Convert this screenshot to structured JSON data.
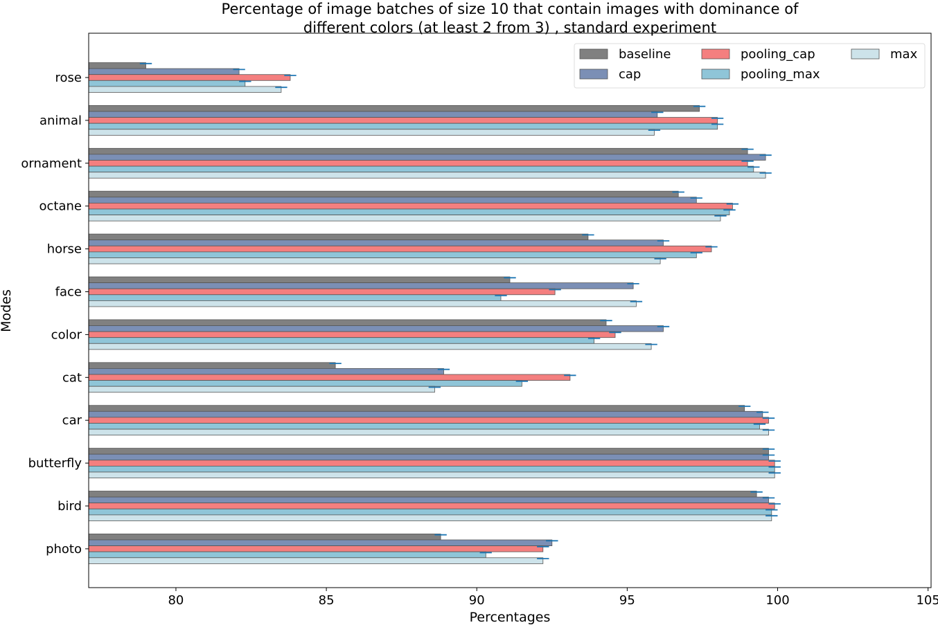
{
  "chart_data": {
    "type": "bar",
    "orientation": "horizontal",
    "title_line1": "Percentage of image batches of size  10  that contain images with dominance of",
    "title_line2": "different colors (at least 2 from 3) , standard experiment",
    "xlabel": "Percentages",
    "ylabel": "Modes",
    "xlim": [
      77.1,
      105.1
    ],
    "xticks": [
      80,
      85,
      90,
      95,
      100,
      105
    ],
    "legend_position": "upper right",
    "legend_columns": 3,
    "grid": false,
    "categories": [
      "rose",
      "animal",
      "ornament",
      "octane",
      "horse",
      "face",
      "color",
      "cat",
      "car",
      "butterfly",
      "bird",
      "photo"
    ],
    "series": [
      {
        "name": "baseline",
        "color": "#808080",
        "values": [
          79.0,
          97.4,
          99.0,
          96.7,
          93.7,
          91.1,
          94.3,
          85.3,
          98.9,
          99.7,
          99.3,
          88.8
        ],
        "errors": [
          0.2,
          0.2,
          0.2,
          0.2,
          0.2,
          0.2,
          0.2,
          0.2,
          0.2,
          0.2,
          0.2,
          0.2
        ]
      },
      {
        "name": "cap",
        "color": "#7b8fb5",
        "values": [
          82.1,
          96.0,
          99.6,
          97.3,
          96.2,
          95.2,
          96.2,
          88.9,
          99.5,
          99.7,
          99.7,
          92.5
        ],
        "errors": [
          0.2,
          0.2,
          0.2,
          0.2,
          0.2,
          0.2,
          0.2,
          0.2,
          0.2,
          0.2,
          0.2,
          0.2
        ]
      },
      {
        "name": "pooling_cap",
        "color": "#f47f7f",
        "values": [
          83.8,
          98.0,
          99.0,
          98.5,
          97.8,
          92.6,
          94.6,
          93.1,
          99.7,
          99.9,
          99.9,
          92.2
        ],
        "errors": [
          0.2,
          0.2,
          0.2,
          0.2,
          0.2,
          0.2,
          0.2,
          0.2,
          0.2,
          0.2,
          0.2,
          0.2
        ]
      },
      {
        "name": "pooling_max",
        "color": "#8fc5d8",
        "values": [
          82.3,
          98.0,
          99.2,
          98.4,
          97.3,
          90.8,
          93.9,
          91.5,
          99.4,
          99.9,
          99.8,
          90.3
        ],
        "errors": [
          0.2,
          0.2,
          0.2,
          0.2,
          0.2,
          0.2,
          0.2,
          0.2,
          0.2,
          0.2,
          0.2,
          0.2
        ]
      },
      {
        "name": "max",
        "color": "#cde3ea",
        "values": [
          83.5,
          95.9,
          99.6,
          98.1,
          96.1,
          95.3,
          95.8,
          88.6,
          99.7,
          99.9,
          99.8,
          92.2
        ],
        "errors": [
          0.2,
          0.2,
          0.2,
          0.2,
          0.2,
          0.2,
          0.2,
          0.2,
          0.2,
          0.2,
          0.2,
          0.2
        ]
      }
    ]
  }
}
